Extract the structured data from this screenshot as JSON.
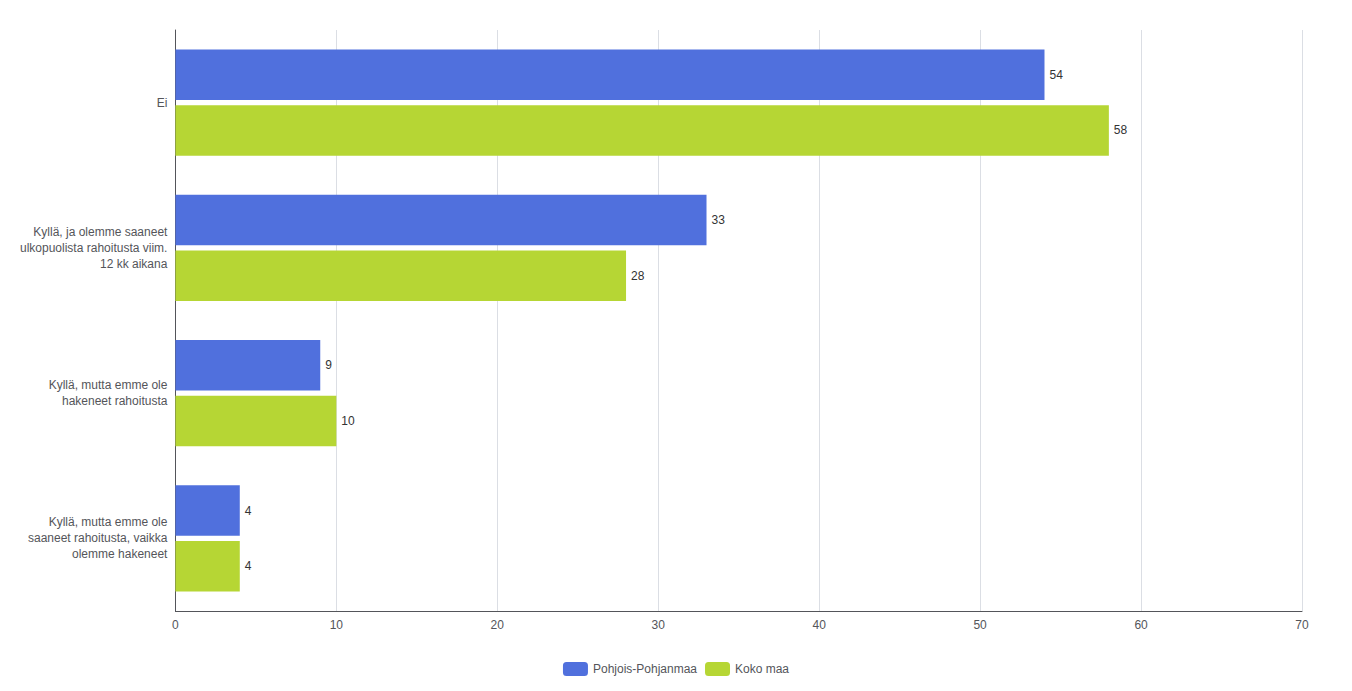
{
  "chart_data": {
    "type": "bar",
    "orientation": "horizontal",
    "categories": [
      "Ei",
      "Kyllä, ja olemme saaneet\nulkopuolista rahoitusta viim.\n12 kk aikana",
      "Kyllä, mutta emme ole\nhakeneet rahoitusta",
      "Kyllä, mutta emme ole\nsaaneet rahoitusta, vaikka\nolemme hakeneet"
    ],
    "series": [
      {
        "name": "Pohjois-Pohjanmaa",
        "values": [
          54,
          33,
          9,
          4
        ]
      },
      {
        "name": "Koko maa",
        "values": [
          58,
          28,
          10,
          4
        ]
      }
    ],
    "xlim": [
      0,
      70
    ],
    "xticks": [
      0,
      10,
      20,
      30,
      40,
      50,
      60,
      70
    ],
    "grid": true,
    "legend": "bottom",
    "data_labels": true
  }
}
